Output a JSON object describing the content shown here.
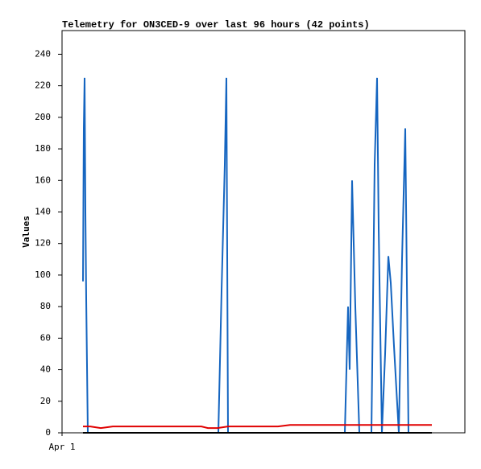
{
  "chart_data": {
    "type": "line",
    "title": "Telemetry for ON3CED-9 over last 96 hours (42 points)",
    "ylabel": "Values",
    "xlim": [
      0,
      100
    ],
    "xticks": [
      {
        "value": 0,
        "label": "Apr 1"
      }
    ],
    "ylim": [
      0,
      255
    ],
    "yticks": [
      0,
      20,
      40,
      60,
      80,
      100,
      120,
      140,
      160,
      180,
      200,
      220,
      240
    ],
    "grid": false,
    "series": [
      {
        "color": "#1565c0",
        "x": [
          5.2,
          5.4,
          5.6,
          5.8,
          6.0,
          6.4,
          38.8,
          39.6,
          40.4,
          40.8,
          41.2,
          70.2,
          71.0,
          71.4,
          72.0,
          72.8,
          73.8,
          76.8,
          77.6,
          78.2,
          78.6,
          79.4,
          80.2,
          81.0,
          81.6,
          82.4,
          83.6,
          84.4,
          85.2,
          85.6,
          86.0,
          91.8
        ],
        "values": [
          96,
          193,
          225,
          140,
          85,
          0,
          0,
          90,
          170,
          225,
          0,
          0,
          80,
          40,
          160,
          80,
          0,
          0,
          170,
          225,
          130,
          0,
          50,
          112,
          95,
          55,
          0,
          110,
          193,
          95,
          0,
          0
        ]
      },
      {
        "color": "#e00000",
        "x": [
          5.2,
          7.0,
          9.6,
          12.6,
          34.6,
          36.2,
          38.6,
          41.2,
          53.6,
          56.6,
          91.8
        ],
        "values": [
          4,
          4,
          3,
          4,
          4,
          3,
          3,
          4,
          4,
          5,
          5
        ]
      },
      {
        "color": "#000000",
        "x": [
          5.2,
          91.8
        ],
        "values": [
          0,
          0
        ]
      }
    ]
  }
}
